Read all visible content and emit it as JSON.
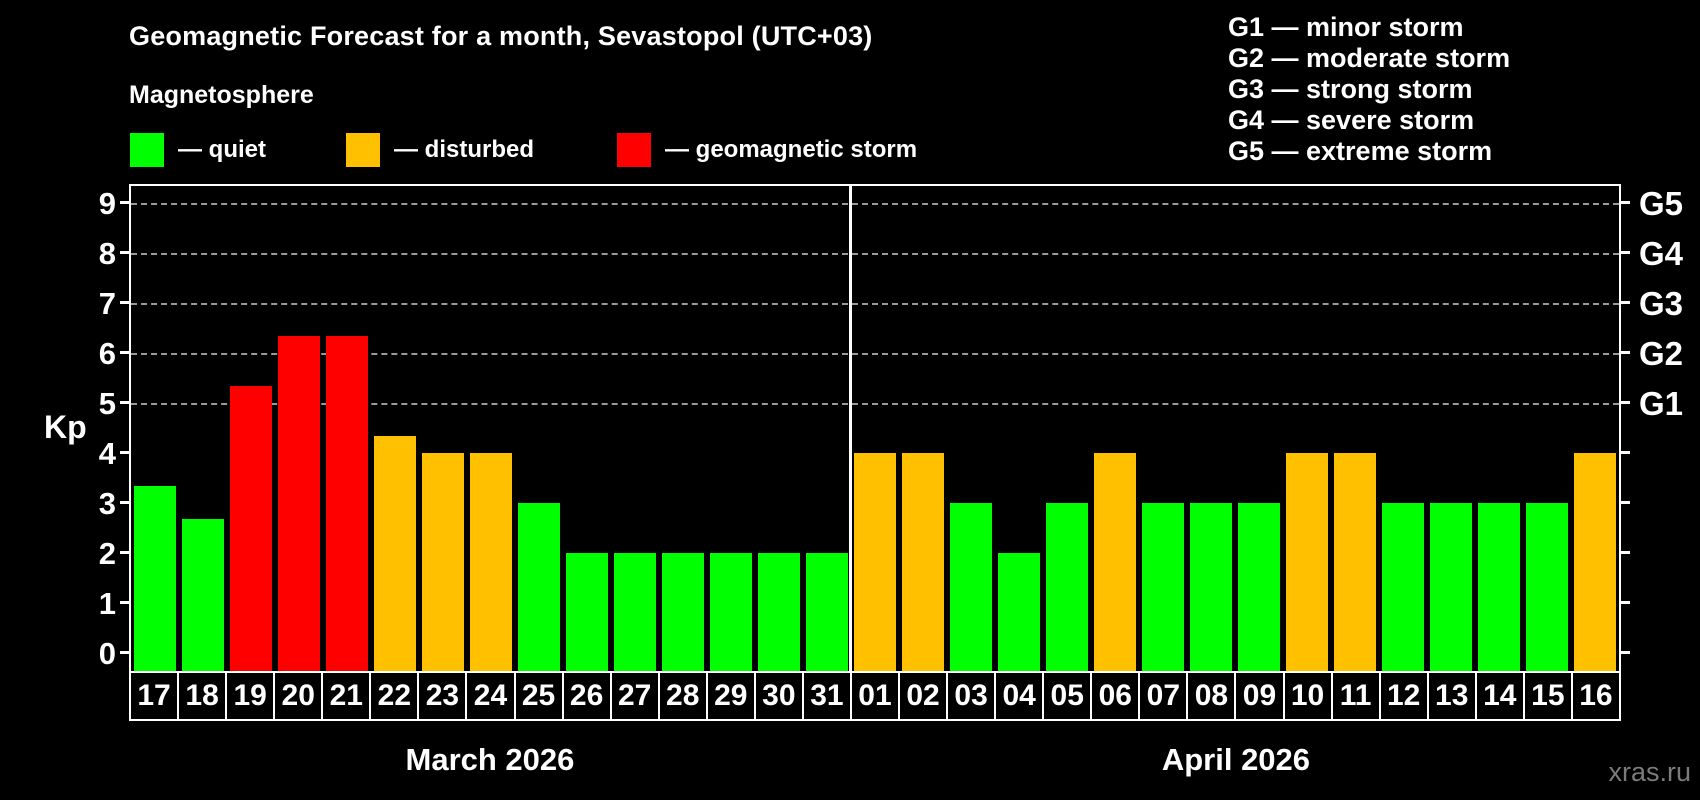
{
  "header": {
    "title": "Geomagnetic Forecast for a month, Sevastopol (UTC+03)",
    "subtitle": "Magnetosphere"
  },
  "legend": {
    "items": [
      {
        "key": "quiet",
        "label": "— quiet",
        "color": "#00ff00"
      },
      {
        "key": "disturbed",
        "label": "— disturbed",
        "color": "#ffc000"
      },
      {
        "key": "storm",
        "label": "— geomagnetic storm",
        "color": "#ff0000"
      }
    ]
  },
  "g_legend": {
    "lines": [
      "G1 — minor storm",
      "G2 — moderate storm",
      "G3 — strong storm",
      "G4 — severe storm",
      "G5 — extreme storm"
    ]
  },
  "watermark": "xras.ru",
  "chart_data": {
    "type": "bar",
    "title": "Geomagnetic Forecast for a month, Sevastopol (UTC+03)",
    "ylabel": "Kp",
    "ylim": [
      0,
      9
    ],
    "grid": "dashed horizontal at Kp 5-9 only",
    "legend_position": "top-left",
    "y_ticks": [
      0,
      1,
      2,
      3,
      4,
      5,
      6,
      7,
      8,
      9
    ],
    "gridlines_kp": [
      5,
      6,
      7,
      8,
      9
    ],
    "right_axis_labels": [
      {
        "label": "G1",
        "kp": 5
      },
      {
        "label": "G2",
        "kp": 6
      },
      {
        "label": "G3",
        "kp": 7
      },
      {
        "label": "G4",
        "kp": 8
      },
      {
        "label": "G5",
        "kp": 9
      }
    ],
    "status_colors": {
      "quiet": "#00ff00",
      "disturbed": "#ffc000",
      "storm": "#ff0000"
    },
    "months": [
      {
        "label": "March 2026",
        "days": [
          {
            "date": "17",
            "kp": 3.33,
            "status": "quiet"
          },
          {
            "date": "18",
            "kp": 2.67,
            "status": "quiet"
          },
          {
            "date": "19",
            "kp": 5.33,
            "status": "storm"
          },
          {
            "date": "20",
            "kp": 6.33,
            "status": "storm"
          },
          {
            "date": "21",
            "kp": 6.33,
            "status": "storm"
          },
          {
            "date": "22",
            "kp": 4.33,
            "status": "disturbed"
          },
          {
            "date": "23",
            "kp": 4.0,
            "status": "disturbed"
          },
          {
            "date": "24",
            "kp": 4.0,
            "status": "disturbed"
          },
          {
            "date": "25",
            "kp": 3.0,
            "status": "quiet"
          },
          {
            "date": "26",
            "kp": 2.0,
            "status": "quiet"
          },
          {
            "date": "27",
            "kp": 2.0,
            "status": "quiet"
          },
          {
            "date": "28",
            "kp": 2.0,
            "status": "quiet"
          },
          {
            "date": "29",
            "kp": 2.0,
            "status": "quiet"
          },
          {
            "date": "30",
            "kp": 2.0,
            "status": "quiet"
          },
          {
            "date": "31",
            "kp": 2.0,
            "status": "quiet"
          }
        ]
      },
      {
        "label": "April 2026",
        "days": [
          {
            "date": "01",
            "kp": 4.0,
            "status": "disturbed"
          },
          {
            "date": "02",
            "kp": 4.0,
            "status": "disturbed"
          },
          {
            "date": "03",
            "kp": 3.0,
            "status": "quiet"
          },
          {
            "date": "04",
            "kp": 2.0,
            "status": "quiet"
          },
          {
            "date": "05",
            "kp": 3.0,
            "status": "quiet"
          },
          {
            "date": "06",
            "kp": 4.0,
            "status": "disturbed"
          },
          {
            "date": "07",
            "kp": 3.0,
            "status": "quiet"
          },
          {
            "date": "08",
            "kp": 3.0,
            "status": "quiet"
          },
          {
            "date": "09",
            "kp": 3.0,
            "status": "quiet"
          },
          {
            "date": "10",
            "kp": 4.0,
            "status": "disturbed"
          },
          {
            "date": "11",
            "kp": 4.0,
            "status": "disturbed"
          },
          {
            "date": "12",
            "kp": 3.0,
            "status": "quiet"
          },
          {
            "date": "13",
            "kp": 3.0,
            "status": "quiet"
          },
          {
            "date": "14",
            "kp": 3.0,
            "status": "quiet"
          },
          {
            "date": "15",
            "kp": 3.0,
            "status": "quiet"
          },
          {
            "date": "16",
            "kp": 4.0,
            "status": "disturbed"
          }
        ]
      }
    ]
  }
}
